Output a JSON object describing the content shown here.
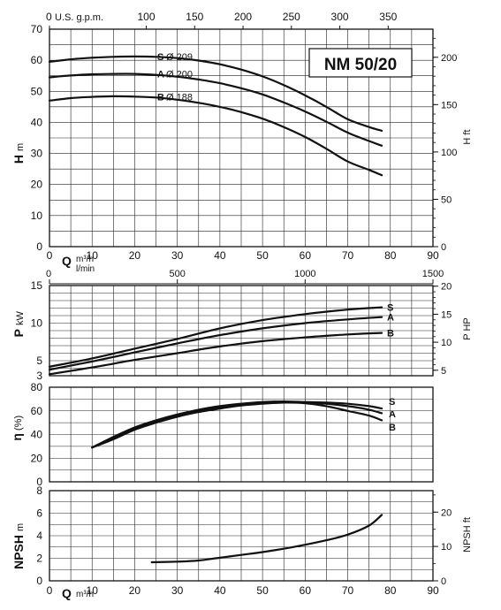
{
  "model_title": "NM 50/20",
  "chart_data": [
    {
      "type": "line",
      "panel": "head",
      "ylabel_symbol": "H",
      "ylabel_unit": "m",
      "right_label": "H ft",
      "top_axis_label": "U.S. g.p.m.",
      "xlabel_symbol": "Q",
      "xlabel_unit": "m³/h",
      "xlabel_unit2": "l/min",
      "xlim": [
        0,
        90
      ],
      "ylim": [
        0,
        70
      ],
      "x_ticks": [
        "0",
        "10",
        "20",
        "30",
        "40",
        "50",
        "60",
        "70",
        "80",
        "90"
      ],
      "y_ticks": [
        "0",
        "10",
        "20",
        "30",
        "40",
        "50",
        "60",
        "70"
      ],
      "top_ticks": [
        "0",
        "100",
        "150",
        "200",
        "250",
        "300",
        "350"
      ],
      "right_ticks": [
        "0",
        "50",
        "100",
        "150",
        "200"
      ],
      "lpm_ticks": [
        "0",
        "500",
        "1000",
        "1500"
      ],
      "grid": true,
      "series": [
        {
          "name": "S",
          "label_letter": "S",
          "label_text": "Ø 209",
          "x": [
            0,
            5,
            10,
            15,
            20,
            25,
            30,
            35,
            40,
            45,
            50,
            55,
            60,
            65,
            70,
            75,
            78
          ],
          "y": [
            59.5,
            60.3,
            60.8,
            61.1,
            61.2,
            61.1,
            60.7,
            59.9,
            58.7,
            57.0,
            54.8,
            52.0,
            48.7,
            45.0,
            41.0,
            38.5,
            37.3
          ]
        },
        {
          "name": "A",
          "label_letter": "A",
          "label_text": "Ø 200",
          "x": [
            0,
            5,
            10,
            15,
            20,
            25,
            30,
            35,
            40,
            45,
            50,
            55,
            60,
            65,
            70,
            75,
            78
          ],
          "y": [
            54.5,
            55.1,
            55.5,
            55.6,
            55.6,
            55.3,
            54.7,
            53.8,
            52.6,
            51.0,
            49.0,
            46.4,
            43.5,
            40.2,
            36.7,
            34.0,
            32.5
          ]
        },
        {
          "name": "B",
          "label_letter": "B",
          "label_text": "Ø 188",
          "x": [
            0,
            5,
            10,
            15,
            20,
            25,
            30,
            35,
            40,
            45,
            50,
            55,
            60,
            65,
            70,
            75,
            78
          ],
          "y": [
            47.0,
            47.8,
            48.2,
            48.4,
            48.3,
            48.0,
            47.3,
            46.3,
            45.0,
            43.3,
            41.2,
            38.5,
            35.3,
            31.5,
            27.4,
            24.7,
            23.0
          ]
        }
      ]
    },
    {
      "type": "line",
      "panel": "power",
      "ylabel_symbol": "P",
      "ylabel_unit": "kW",
      "right_label": "P HP",
      "xlim": [
        0,
        90
      ],
      "ylim": [
        3,
        15
      ],
      "y_ticks": [
        "3",
        "5",
        "10",
        "15"
      ],
      "right_ticks": [
        "5",
        "10",
        "15",
        "20"
      ],
      "grid": true,
      "series": [
        {
          "name": "S",
          "label_letter": "S",
          "x": [
            0,
            10,
            20,
            30,
            40,
            50,
            60,
            70,
            78
          ],
          "y": [
            4.2,
            5.3,
            6.6,
            7.9,
            9.3,
            10.4,
            11.2,
            11.8,
            12.1
          ]
        },
        {
          "name": "A",
          "label_letter": "A",
          "x": [
            0,
            10,
            20,
            30,
            40,
            50,
            60,
            70,
            78
          ],
          "y": [
            3.8,
            4.9,
            6.1,
            7.3,
            8.4,
            9.3,
            10.0,
            10.5,
            10.8
          ]
        },
        {
          "name": "B",
          "label_letter": "B",
          "x": [
            0,
            10,
            20,
            30,
            40,
            50,
            60,
            70,
            78
          ],
          "y": [
            3.2,
            4.1,
            5.1,
            6.0,
            6.9,
            7.6,
            8.1,
            8.5,
            8.7
          ]
        }
      ]
    },
    {
      "type": "line",
      "panel": "efficiency",
      "ylabel_symbol": "η",
      "ylabel_unit": "(%)",
      "xlim": [
        0,
        90
      ],
      "ylim": [
        0,
        80
      ],
      "y_ticks": [
        "0",
        "20",
        "40",
        "60",
        "80"
      ],
      "grid": true,
      "series": [
        {
          "name": "S",
          "label_letter": "S",
          "x": [
            10,
            15,
            20,
            25,
            30,
            35,
            40,
            45,
            50,
            55,
            60,
            65,
            70,
            75,
            78
          ],
          "y": [
            29,
            38,
            46,
            52,
            57,
            61,
            64,
            66,
            67.5,
            68,
            67.5,
            67,
            66,
            64,
            62
          ]
        },
        {
          "name": "A",
          "label_letter": "A",
          "x": [
            10,
            15,
            20,
            25,
            30,
            35,
            40,
            45,
            50,
            55,
            60,
            65,
            70,
            75,
            78
          ],
          "y": [
            29,
            37,
            45,
            51,
            56,
            60,
            63,
            65,
            66.5,
            67,
            67,
            66,
            64,
            61,
            58
          ]
        },
        {
          "name": "B",
          "label_letter": "B",
          "x": [
            10,
            15,
            20,
            25,
            30,
            35,
            40,
            45,
            50,
            55,
            60,
            65,
            70,
            75,
            78
          ],
          "y": [
            29,
            36,
            44,
            50,
            55,
            59,
            62,
            64.5,
            66,
            67,
            66.5,
            64,
            60,
            56,
            52
          ]
        }
      ]
    },
    {
      "type": "line",
      "panel": "npsh",
      "ylabel_symbol": "NPSH",
      "ylabel_unit": "m",
      "right_label": "NPSH ft",
      "xlabel_symbol": "Q",
      "xlabel_unit": "m³/h",
      "xlim": [
        0,
        90
      ],
      "ylim": [
        0,
        8
      ],
      "y_ticks": [
        "0",
        "2",
        "4",
        "6",
        "8"
      ],
      "right_ticks": [
        "0",
        "10",
        "20"
      ],
      "x_ticks": [
        "0",
        "10",
        "20",
        "30",
        "40",
        "50",
        "60",
        "70",
        "80",
        "90"
      ],
      "grid": true,
      "series": [
        {
          "name": "NPSH",
          "x": [
            24,
            30,
            35,
            40,
            45,
            50,
            55,
            60,
            65,
            70,
            75,
            78
          ],
          "y": [
            1.65,
            1.7,
            1.8,
            2.05,
            2.3,
            2.55,
            2.85,
            3.2,
            3.6,
            4.1,
            4.9,
            5.85
          ]
        }
      ]
    }
  ]
}
